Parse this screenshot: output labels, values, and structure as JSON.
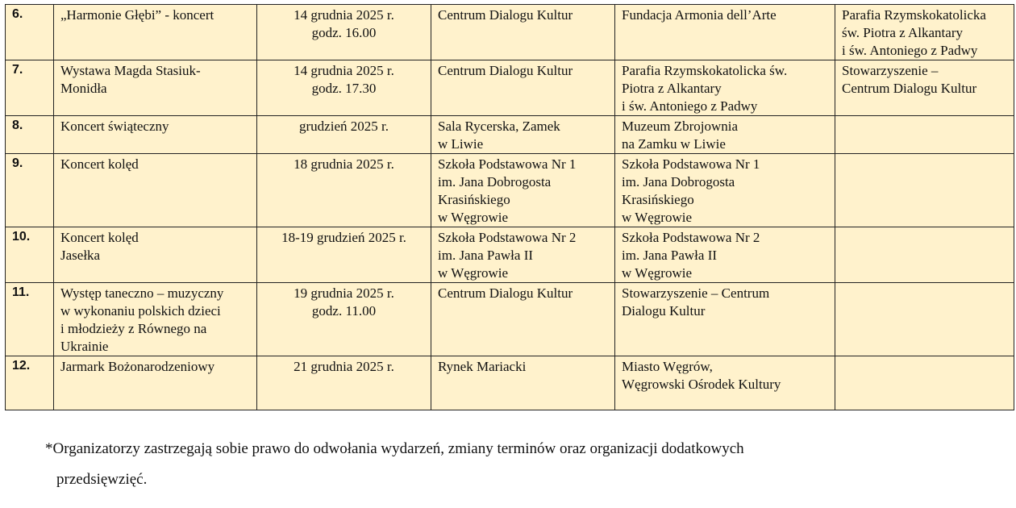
{
  "table": {
    "rows": [
      {
        "num": "6.",
        "name": "„Harmonie Głębi” - koncert",
        "date": "14 grudnia 2025 r.\ngodz. 16.00",
        "place": "Centrum Dialogu Kultur",
        "organizer": "Fundacja Armonia dell’Arte",
        "partner": "Parafia Rzymskokatolicka\nśw. Piotra z Alkantary\ni św. Antoniego z Padwy"
      },
      {
        "num": "7.",
        "name": "Wystawa Magda Stasiuk-\nMonidła",
        "date": "14 grudnia 2025 r.\ngodz. 17.30",
        "place": "Centrum Dialogu Kultur",
        "organizer": "Parafia Rzymskokatolicka św.\nPiotra z Alkantary\ni św. Antoniego z Padwy",
        "partner": "Stowarzyszenie –\nCentrum Dialogu Kultur"
      },
      {
        "num": "8.",
        "name": "Koncert świąteczny",
        "date": "grudzień 2025 r.",
        "place": "Sala Rycerska, Zamek\nw Liwie",
        "organizer": "Muzeum Zbrojownia\nna Zamku w Liwie",
        "partner": ""
      },
      {
        "num": "9.",
        "name": "Koncert kolęd",
        "date": "18 grudnia 2025 r.",
        "place": "Szkoła Podstawowa Nr 1\nim. Jana Dobrogosta\nKrasińskiego\nw Węgrowie",
        "organizer": "Szkoła Podstawowa Nr 1\nim. Jana Dobrogosta\nKrasińskiego\nw Węgrowie",
        "partner": ""
      },
      {
        "num": "10.",
        "name": "Koncert kolęd\nJasełka",
        "date": "18-19 grudzień 2025 r.",
        "place": "Szkoła Podstawowa Nr 2\nim. Jana Pawła II\nw Węgrowie",
        "organizer": "Szkoła Podstawowa Nr 2\nim. Jana Pawła II\nw Węgrowie",
        "partner": ""
      },
      {
        "num": "11.",
        "name": "Występ taneczno – muzyczny\nw wykonaniu polskich dzieci\ni młodzieży z Równego na\nUkrainie",
        "date": "19 grudnia 2025 r.\ngodz. 11.00",
        "place": "Centrum Dialogu Kultur",
        "organizer": "Stowarzyszenie – Centrum\nDialogu Kultur",
        "partner": ""
      },
      {
        "num": "12.",
        "name": "Jarmark Bożonarodzeniowy",
        "date": "21 grudnia 2025 r.",
        "place": "Rynek Mariacki",
        "organizer": "Miasto Węgrów,\nWęgrowski Ośrodek Kultury",
        "partner": ""
      }
    ]
  },
  "footnote": {
    "line1": "*Organizatorzy zastrzegają sobie prawo do odwołania wydarzeń, zmiany terminów oraz organizacji dodatkowych",
    "line2": "przedsięwzięć."
  }
}
